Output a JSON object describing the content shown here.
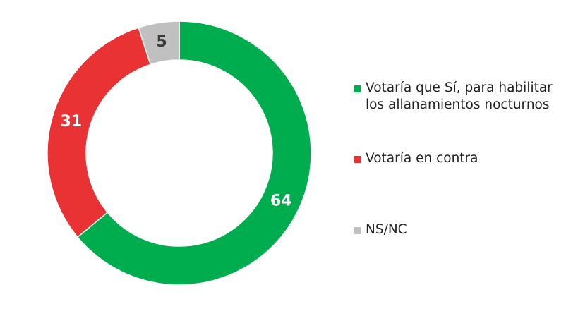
{
  "chart_data": {
    "type": "pie",
    "categories": [
      "Votaría que Sí, para habilitar los allanamientos nocturnos",
      "Votaría en contra",
      "NS/NC"
    ],
    "values": [
      64,
      31,
      5
    ],
    "colors": [
      "#00ad4e",
      "#e83234",
      "#c0c0c0"
    ],
    "donut": true,
    "legend": "right"
  }
}
